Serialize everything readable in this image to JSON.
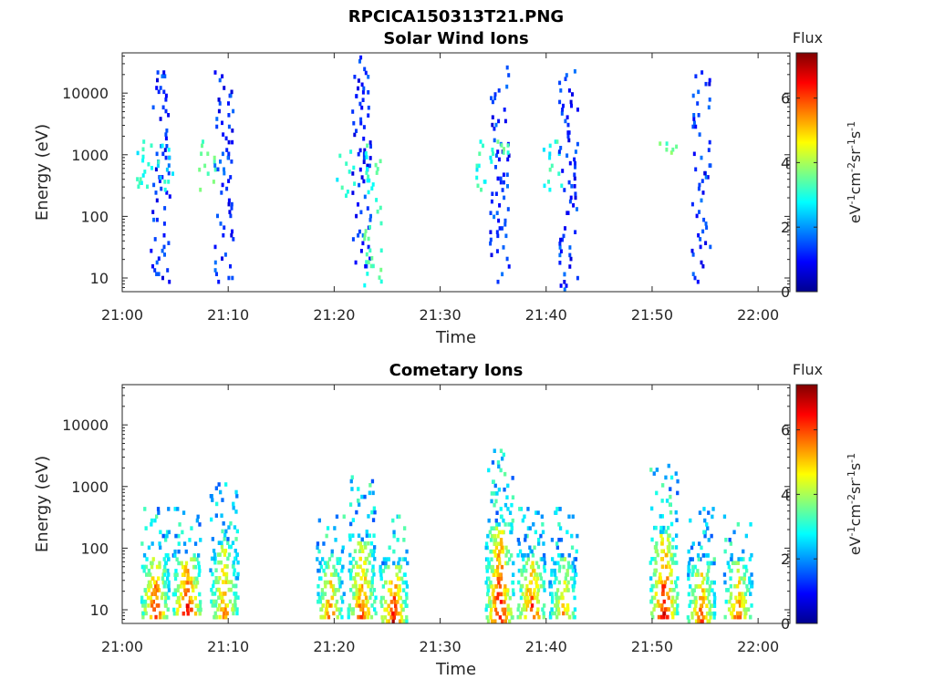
{
  "figure_title": "RPCICA150313T21.PNG",
  "colors": {
    "colormap": [
      "#00008f",
      "#0000ff",
      "#0080ff",
      "#00ffff",
      "#80ff80",
      "#ffff00",
      "#ff8000",
      "#ff0000",
      "#800000"
    ],
    "axes": "#262626",
    "background": "#ffffff"
  },
  "chart_data": [
    {
      "type": "heatmap",
      "title": "Solar Wind Ions",
      "xlabel": "Time",
      "ylabel": "Energy (eV)",
      "yscale": "log",
      "xlim": [
        "21:00",
        "22:03"
      ],
      "ylim": [
        6,
        45000
      ],
      "x_ticks": [
        "21:00",
        "21:10",
        "21:20",
        "21:30",
        "21:40",
        "21:50",
        "22:00"
      ],
      "y_ticks": [
        "10",
        "100",
        "1000",
        "10000"
      ],
      "colorbar": {
        "title": "Flux",
        "label": "eV-1cm-2sr-1s-1",
        "label_parts": [
          [
            "eV",
            ""
          ],
          [
            "-1",
            "sup"
          ],
          [
            "cm",
            ""
          ],
          [
            "-2",
            "sup"
          ],
          [
            "sr",
            ""
          ],
          [
            "-1",
            "sup"
          ],
          [
            "s",
            ""
          ],
          [
            "-1",
            "sup"
          ]
        ],
        "range": [
          0,
          7.4
        ],
        "ticks": [
          "0",
          "2",
          "4",
          "6"
        ]
      },
      "bursts": [
        {
          "t": "21:02",
          "low_e": 280,
          "high_e": 1500,
          "flux": 3.0
        },
        {
          "t": "21:03.5",
          "low_e": 8,
          "high_e": 20000,
          "flux": 1.2
        },
        {
          "t": "21:04",
          "low_e": 250,
          "high_e": 1500,
          "flux": 2.8
        },
        {
          "t": "21:08",
          "low_e": 250,
          "high_e": 1500,
          "flux": 3.3
        },
        {
          "t": "21:09.5",
          "low_e": 8,
          "high_e": 20000,
          "flux": 1.2
        },
        {
          "t": "21:21",
          "low_e": 200,
          "high_e": 1200,
          "flux": 3.0
        },
        {
          "t": "21:22.5",
          "low_e": 8,
          "high_e": 35000,
          "flux": 1.2
        },
        {
          "t": "21:23.5",
          "low_e": 7,
          "high_e": 1500,
          "flux": 3.2
        },
        {
          "t": "21:34",
          "low_e": 250,
          "high_e": 1500,
          "flux": 3.0
        },
        {
          "t": "21:35.5",
          "low_e": 8,
          "high_e": 24000,
          "flux": 1.2
        },
        {
          "t": "21:36",
          "low_e": 1000,
          "high_e": 1500,
          "flux": 3.2
        },
        {
          "t": "21:40.5",
          "low_e": 250,
          "high_e": 1500,
          "flux": 3.0
        },
        {
          "t": "21:42",
          "low_e": 6,
          "high_e": 24000,
          "flux": 1.2
        },
        {
          "t": "21:51.5",
          "low_e": 1000,
          "high_e": 1400,
          "flux": 3.5
        },
        {
          "t": "21:54.5",
          "low_e": 8,
          "high_e": 20000,
          "flux": 1.2
        }
      ]
    },
    {
      "type": "heatmap",
      "title": "Cometary Ions",
      "xlabel": "Time",
      "ylabel": "Energy (eV)",
      "yscale": "log",
      "xlim": [
        "21:00",
        "22:03"
      ],
      "ylim": [
        6,
        45000
      ],
      "x_ticks": [
        "21:00",
        "21:10",
        "21:20",
        "21:30",
        "21:40",
        "21:50",
        "22:00"
      ],
      "y_ticks": [
        "10",
        "100",
        "1000",
        "10000"
      ],
      "colorbar": {
        "title": "Flux",
        "label": "eV-1cm-2sr-1s-1",
        "label_parts": [
          [
            "eV",
            ""
          ],
          [
            "-1",
            "sup"
          ],
          [
            "cm",
            ""
          ],
          [
            "-2",
            "sup"
          ],
          [
            "sr",
            ""
          ],
          [
            "-1",
            "sup"
          ],
          [
            "s",
            ""
          ],
          [
            "-1",
            "sup"
          ]
        ],
        "range": [
          0,
          7.4
        ],
        "ticks": [
          "0",
          "2",
          "4",
          "6"
        ]
      },
      "bursts": [
        {
          "t": "21:03",
          "low_e": 7,
          "high_e": 400,
          "flux": 6.5
        },
        {
          "t": "21:06",
          "low_e": 8,
          "high_e": 400,
          "flux": 6.8
        },
        {
          "t": "21:09.5",
          "low_e": 7,
          "high_e": 1000,
          "flux": 5.8
        },
        {
          "t": "21:19.5",
          "low_e": 7,
          "high_e": 300,
          "flux": 5.8
        },
        {
          "t": "21:22.5",
          "low_e": 7,
          "high_e": 1300,
          "flux": 6.2
        },
        {
          "t": "21:25.5",
          "low_e": 6,
          "high_e": 300,
          "flux": 6.8
        },
        {
          "t": "21:35.5",
          "low_e": 6,
          "high_e": 3500,
          "flux": 6.8
        },
        {
          "t": "21:38.5",
          "low_e": 7,
          "high_e": 400,
          "flux": 6.5
        },
        {
          "t": "21:41.5",
          "low_e": 7,
          "high_e": 400,
          "flux": 5.5
        },
        {
          "t": "21:51",
          "low_e": 7,
          "high_e": 2000,
          "flux": 6.8
        },
        {
          "t": "21:54.5",
          "low_e": 6,
          "high_e": 400,
          "flux": 6.0
        },
        {
          "t": "21:58",
          "low_e": 7,
          "high_e": 300,
          "flux": 6.0
        }
      ]
    }
  ]
}
